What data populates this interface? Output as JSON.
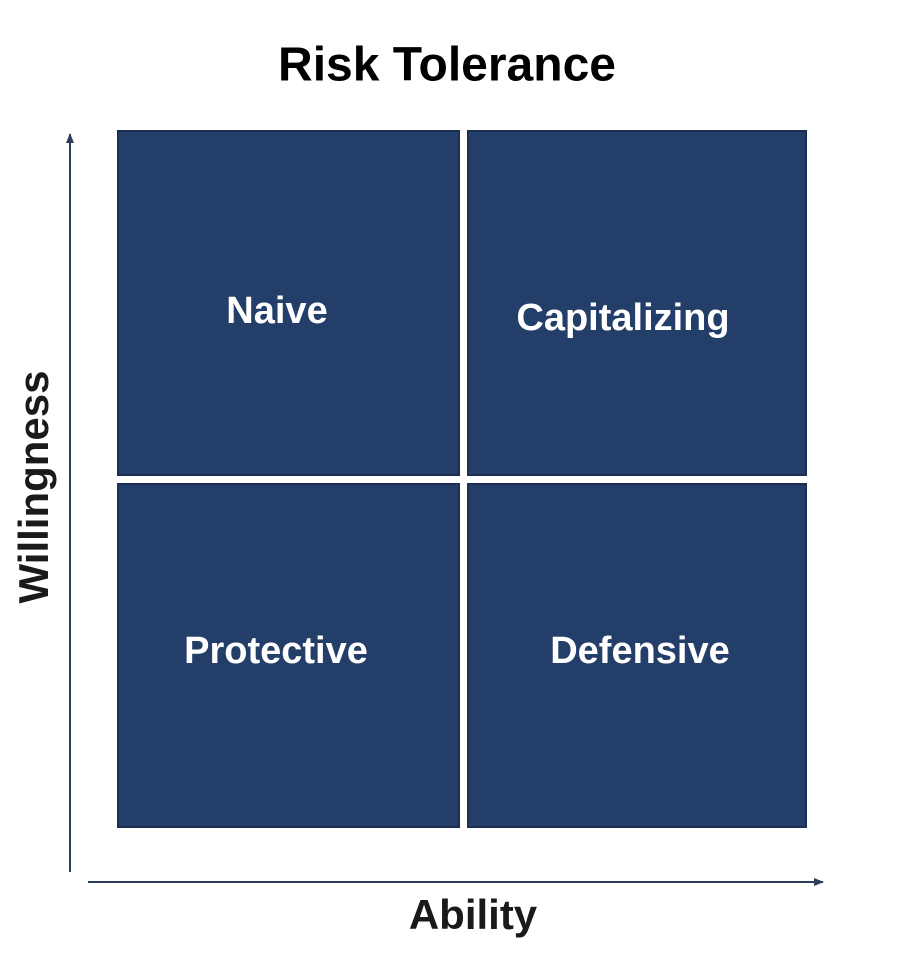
{
  "title": "Risk Tolerance",
  "y_axis": {
    "label": "Willingness"
  },
  "x_axis": {
    "label": "Ability"
  },
  "quadrants": [
    {
      "label": "Naive"
    },
    {
      "label": "Capitalizing"
    },
    {
      "label": "Protective"
    },
    {
      "label": "Defensive"
    }
  ]
}
